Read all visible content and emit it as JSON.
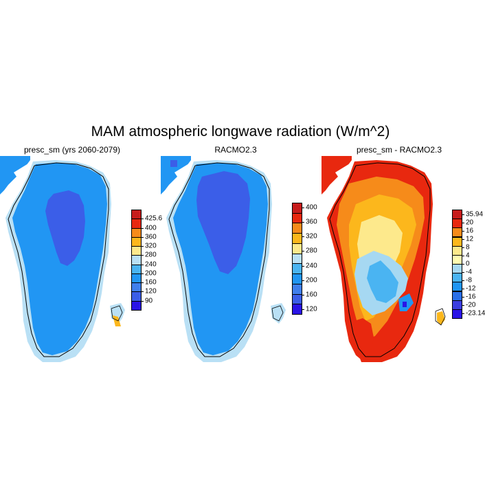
{
  "title": "MAM atmospheric longwave radiation (W/m^2)",
  "panels": [
    {
      "title": "presc_sm (yrs 2060-2079)",
      "colors": [
        "#2a14e6",
        "#3b5ee8",
        "#3f7fec",
        "#2196f3",
        "#4ab4f2",
        "#b9e0f5",
        "#fde98c",
        "#fcb71c",
        "#f68b1a",
        "#e8280f",
        "#c71c1c"
      ],
      "labels": [
        "90",
        "120",
        "160",
        "200",
        "240",
        "280",
        "320",
        "360",
        "400",
        "425.6"
      ]
    },
    {
      "title": "RACMO2.3",
      "colors": [
        "#2a14e6",
        "#3b5ee8",
        "#3f7fec",
        "#2196f3",
        "#4ab4f2",
        "#b9e0f5",
        "#fde98c",
        "#fcb71c",
        "#f68b1a",
        "#e8280f",
        "#c71c1c"
      ],
      "labels": [
        "120",
        "160",
        "200",
        "240",
        "280",
        "320",
        "360",
        "400"
      ]
    },
    {
      "title": "presc_sm - RACMO2.3",
      "colors": [
        "#2a14e6",
        "#3b3ee0",
        "#2a6fe8",
        "#2196f3",
        "#4ab4f2",
        "#a6d8f2",
        "#fffbb0",
        "#fde98c",
        "#fcb71c",
        "#f68b1a",
        "#e8280f",
        "#c71c1c"
      ],
      "labels": [
        "-23.14",
        "-20",
        "-16",
        "-12",
        "-8",
        "-4",
        "0",
        "4",
        "8",
        "12",
        "16",
        "20",
        "35.94"
      ]
    }
  ]
}
